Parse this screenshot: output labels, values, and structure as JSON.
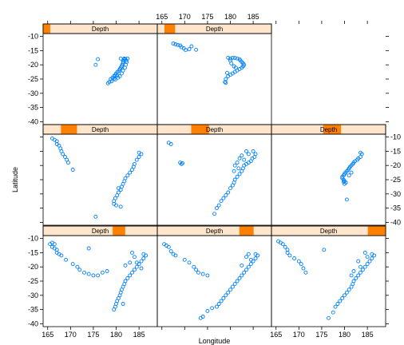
{
  "chart_data": {
    "type": "scatter",
    "layout": "trellis 3x3, conditioned on Depth (equal-count shingles)",
    "xlabel": "Longitude",
    "ylabel": "Latitude",
    "xlim": [
      164,
      189
    ],
    "ylim": [
      -41,
      -9
    ],
    "x_ticks": [
      165,
      170,
      175,
      180,
      185
    ],
    "y_ticks": [
      -10,
      -15,
      -20,
      -25,
      -30,
      -35,
      -40
    ],
    "strip_label": "Depth",
    "colors": {
      "points": "#0080ff",
      "strip_bg": "#ffe5cc",
      "strip_bar": "#ff7f00",
      "frame": "#000000"
    },
    "depth_range": [
      40,
      680
    ],
    "panels": [
      {
        "index": 1,
        "row": 1,
        "col": 1,
        "depth_interval": [
          40,
          80
        ],
        "points": [
          [
            178.5,
            -26
          ],
          [
            178.8,
            -25
          ],
          [
            179.2,
            -24.5
          ],
          [
            179.5,
            -24
          ],
          [
            179.8,
            -23.5
          ],
          [
            180,
            -23
          ],
          [
            180.3,
            -22.5
          ],
          [
            180.6,
            -22
          ],
          [
            180.8,
            -21.5
          ],
          [
            181,
            -21
          ],
          [
            181.2,
            -20.5
          ],
          [
            181.3,
            -20
          ],
          [
            181.5,
            -19.5
          ],
          [
            181.5,
            -19
          ],
          [
            181.6,
            -18.5
          ],
          [
            181.7,
            -18
          ],
          [
            181.8,
            -17.8
          ],
          [
            182,
            -18
          ],
          [
            182.2,
            -18.5
          ],
          [
            182.3,
            -19
          ],
          [
            182.1,
            -20
          ],
          [
            181.9,
            -21
          ],
          [
            181.5,
            -22
          ],
          [
            181.2,
            -23
          ],
          [
            180.8,
            -24
          ],
          [
            180.4,
            -24.5
          ],
          [
            179.8,
            -25.2
          ],
          [
            179,
            -25.8
          ],
          [
            178.2,
            -26.5
          ],
          [
            181,
            -17.8
          ],
          [
            182.5,
            -17.8
          ],
          [
            176,
            -18
          ],
          [
            175.5,
            -20
          ],
          [
            180.2,
            -23.8
          ],
          [
            179.6,
            -24.8
          ]
        ]
      },
      {
        "index": 2,
        "row": 1,
        "col": 2,
        "depth_interval": [
          80,
          140
        ],
        "points": [
          [
            167.5,
            -12.5
          ],
          [
            168,
            -12.8
          ],
          [
            168.5,
            -13
          ],
          [
            169,
            -13.2
          ],
          [
            169.3,
            -13.8
          ],
          [
            169.8,
            -14.2
          ],
          [
            170.2,
            -14.8
          ],
          [
            171,
            -14.5
          ],
          [
            172.5,
            -14.7
          ],
          [
            171.5,
            -13.5
          ],
          [
            179.5,
            -17.5
          ],
          [
            180,
            -17.8
          ],
          [
            180.5,
            -17.5
          ],
          [
            181,
            -17.6
          ],
          [
            181.5,
            -17.8
          ],
          [
            182,
            -18
          ],
          [
            182.2,
            -18.5
          ],
          [
            182.5,
            -19
          ],
          [
            182.8,
            -19.5
          ],
          [
            183,
            -20
          ],
          [
            182.8,
            -20.5
          ],
          [
            182.5,
            -21
          ],
          [
            182,
            -21.5
          ],
          [
            181.5,
            -22
          ],
          [
            181,
            -22.5
          ],
          [
            180.5,
            -23
          ],
          [
            180,
            -23.5
          ],
          [
            179.5,
            -24
          ],
          [
            179,
            -25
          ],
          [
            178.8,
            -26
          ],
          [
            179,
            -26.3
          ],
          [
            180,
            -18.5
          ],
          [
            180.2,
            -19.5
          ],
          [
            180.8,
            -20.5
          ],
          [
            181.2,
            -21
          ],
          [
            179.3,
            -22.8
          ]
        ]
      },
      {
        "index": 3,
        "row": 2,
        "col": 1,
        "depth_interval": [
          140,
          230
        ],
        "points": [
          [
            166,
            -10.5
          ],
          [
            166.5,
            -11
          ],
          [
            167,
            -11.5
          ],
          [
            167,
            -12.5
          ],
          [
            167.5,
            -13
          ],
          [
            167.8,
            -14
          ],
          [
            168,
            -15
          ],
          [
            168.3,
            -16
          ],
          [
            168.8,
            -17
          ],
          [
            169.2,
            -18
          ],
          [
            169.5,
            -19
          ],
          [
            170.5,
            -21.5
          ],
          [
            185,
            -15.5
          ],
          [
            185.5,
            -16
          ],
          [
            185,
            -17
          ],
          [
            184.5,
            -18
          ],
          [
            184,
            -19.5
          ],
          [
            183.8,
            -20.5
          ],
          [
            183.5,
            -21.5
          ],
          [
            183,
            -22.5
          ],
          [
            182.5,
            -23.5
          ],
          [
            182,
            -24.5
          ],
          [
            181.8,
            -25.5
          ],
          [
            181.5,
            -26.5
          ],
          [
            181.2,
            -27.5
          ],
          [
            181,
            -28.5
          ],
          [
            180.5,
            -29.5
          ],
          [
            180.2,
            -30.5
          ],
          [
            179.8,
            -31.5
          ],
          [
            179.5,
            -32.5
          ],
          [
            179.5,
            -33.5
          ],
          [
            180,
            -34
          ],
          [
            181,
            -34.5
          ],
          [
            175.5,
            -38
          ],
          [
            180.5,
            -28
          ]
        ]
      },
      {
        "index": 4,
        "row": 2,
        "col": 2,
        "depth_interval": [
          230,
          330
        ],
        "points": [
          [
            166.5,
            -12
          ],
          [
            167,
            -12.5
          ],
          [
            169,
            -19
          ],
          [
            169.3,
            -19.5
          ],
          [
            169.5,
            -19.2
          ],
          [
            185,
            -15
          ],
          [
            185.5,
            -16
          ],
          [
            185.3,
            -17
          ],
          [
            184.8,
            -17.5
          ],
          [
            184.5,
            -18.5
          ],
          [
            184,
            -19
          ],
          [
            183.5,
            -19.5
          ],
          [
            183,
            -20
          ],
          [
            182.8,
            -21
          ],
          [
            182.5,
            -22
          ],
          [
            182,
            -23
          ],
          [
            181.5,
            -24
          ],
          [
            181,
            -25
          ],
          [
            180.8,
            -26
          ],
          [
            180.5,
            -27
          ],
          [
            180,
            -28
          ],
          [
            179.5,
            -29.5
          ],
          [
            179,
            -30.5
          ],
          [
            178.5,
            -31.5
          ],
          [
            178,
            -32.5
          ],
          [
            177.5,
            -34
          ],
          [
            177,
            -35
          ],
          [
            176.5,
            -37
          ],
          [
            183.5,
            -15
          ],
          [
            184,
            -16
          ],
          [
            182.5,
            -16.5
          ],
          [
            182,
            -17.5
          ],
          [
            183,
            -18
          ],
          [
            181.5,
            -19
          ],
          [
            181,
            -20
          ],
          [
            180.8,
            -22
          ],
          [
            181.8,
            -21
          ]
        ]
      },
      {
        "index": 5,
        "row": 2,
        "col": 3,
        "depth_interval": [
          330,
          430
        ],
        "points": [
          [
            183.5,
            -15.5
          ],
          [
            183.8,
            -16
          ],
          [
            183.5,
            -17
          ],
          [
            183,
            -17.5
          ],
          [
            182.8,
            -18
          ],
          [
            182.3,
            -18.5
          ],
          [
            182,
            -19
          ],
          [
            181.8,
            -19.5
          ],
          [
            181.5,
            -20
          ],
          [
            181.2,
            -20.5
          ],
          [
            181,
            -21
          ],
          [
            180.8,
            -21.5
          ],
          [
            180.5,
            -22
          ],
          [
            180.2,
            -22.5
          ],
          [
            180,
            -23
          ],
          [
            179.8,
            -23.5
          ],
          [
            179.5,
            -24
          ],
          [
            179.5,
            -24.5
          ],
          [
            179.8,
            -25
          ],
          [
            180,
            -25.5
          ],
          [
            180.3,
            -26
          ],
          [
            180,
            -26.5
          ],
          [
            179.8,
            -25.8
          ],
          [
            181,
            -23.5
          ],
          [
            181.5,
            -22.5
          ],
          [
            180.5,
            -32
          ]
        ]
      },
      {
        "index": 6,
        "row": 3,
        "col": 1,
        "depth_interval": [
          430,
          500
        ],
        "points": [
          [
            165.5,
            -12
          ],
          [
            166,
            -11.5
          ],
          [
            166.5,
            -12
          ],
          [
            166,
            -13
          ],
          [
            166.5,
            -13.5
          ],
          [
            167,
            -14
          ],
          [
            167,
            -15
          ],
          [
            167.5,
            -15.5
          ],
          [
            168,
            -16
          ],
          [
            169,
            -17.5
          ],
          [
            170.5,
            -19
          ],
          [
            171.5,
            -20
          ],
          [
            172,
            -21
          ],
          [
            173,
            -22
          ],
          [
            174,
            -22.5
          ],
          [
            175,
            -23
          ],
          [
            176,
            -23
          ],
          [
            177,
            -22
          ],
          [
            178,
            -21.5
          ],
          [
            174,
            -13.5
          ],
          [
            186,
            -15.5
          ],
          [
            186.5,
            -16
          ],
          [
            186,
            -17
          ],
          [
            185.5,
            -18
          ],
          [
            185,
            -19
          ],
          [
            184.5,
            -20
          ],
          [
            184,
            -21
          ],
          [
            183.5,
            -22
          ],
          [
            183,
            -23
          ],
          [
            182.5,
            -24
          ],
          [
            182,
            -25
          ],
          [
            181.8,
            -26
          ],
          [
            181.5,
            -27
          ],
          [
            181.2,
            -28
          ],
          [
            181,
            -29
          ],
          [
            180.8,
            -30
          ],
          [
            180.5,
            -31
          ],
          [
            180.2,
            -32
          ],
          [
            180,
            -33
          ],
          [
            179.8,
            -34
          ],
          [
            179.5,
            -35
          ],
          [
            183.5,
            -15
          ],
          [
            184,
            -16.5
          ],
          [
            184.5,
            -18.5
          ],
          [
            185.5,
            -20.5
          ],
          [
            182,
            -19.5
          ],
          [
            183,
            -18.5
          ],
          [
            181.5,
            -33
          ]
        ]
      },
      {
        "index": 7,
        "row": 3,
        "col": 2,
        "depth_interval": [
          500,
          580
        ],
        "points": [
          [
            165.5,
            -12
          ],
          [
            166,
            -12.5
          ],
          [
            166.5,
            -13
          ],
          [
            167,
            -14.5
          ],
          [
            167.5,
            -15.5
          ],
          [
            168,
            -16
          ],
          [
            170,
            -17.5
          ],
          [
            171,
            -18.5
          ],
          [
            172,
            -20
          ],
          [
            172.5,
            -21
          ],
          [
            173,
            -22
          ],
          [
            174,
            -22.5
          ],
          [
            175,
            -23
          ],
          [
            185.5,
            -15.5
          ],
          [
            186,
            -16
          ],
          [
            185.5,
            -17
          ],
          [
            185,
            -18
          ],
          [
            184.5,
            -19
          ],
          [
            184,
            -20
          ],
          [
            183.5,
            -21
          ],
          [
            183,
            -22
          ],
          [
            182.5,
            -23
          ],
          [
            182,
            -24
          ],
          [
            181.5,
            -25
          ],
          [
            181,
            -26
          ],
          [
            180.5,
            -27
          ],
          [
            180,
            -28
          ],
          [
            179.5,
            -29
          ],
          [
            179,
            -30
          ],
          [
            178.5,
            -31
          ],
          [
            178,
            -32
          ],
          [
            177.5,
            -33
          ],
          [
            177,
            -34
          ],
          [
            176,
            -34.5
          ],
          [
            175,
            -35.5
          ],
          [
            174,
            -37.5
          ],
          [
            173.5,
            -38
          ],
          [
            184,
            -15.5
          ],
          [
            183.5,
            -16.5
          ],
          [
            184.5,
            -17.5
          ],
          [
            182.5,
            -19.5
          ]
        ]
      },
      {
        "index": 8,
        "row": 3,
        "col": 3,
        "depth_interval": [
          580,
          680
        ],
        "points": [
          [
            165.5,
            -11
          ],
          [
            166,
            -11.5
          ],
          [
            166.5,
            -12
          ],
          [
            167,
            -13
          ],
          [
            167.5,
            -14
          ],
          [
            167.5,
            -15
          ],
          [
            168,
            -16
          ],
          [
            169,
            -17
          ],
          [
            170,
            -18
          ],
          [
            170.5,
            -19
          ],
          [
            171,
            -20.5
          ],
          [
            171.5,
            -22
          ],
          [
            175.5,
            -14
          ],
          [
            186,
            -15.5
          ],
          [
            186.5,
            -16
          ],
          [
            186,
            -17
          ],
          [
            185.5,
            -18
          ],
          [
            185,
            -19
          ],
          [
            184.5,
            -20
          ],
          [
            184,
            -21
          ],
          [
            183.5,
            -22
          ],
          [
            183,
            -23
          ],
          [
            182.5,
            -24
          ],
          [
            182,
            -25
          ],
          [
            181.8,
            -26
          ],
          [
            181.5,
            -27
          ],
          [
            181,
            -28
          ],
          [
            180.5,
            -29
          ],
          [
            180,
            -30
          ],
          [
            179.5,
            -31
          ],
          [
            179,
            -32
          ],
          [
            178.5,
            -33
          ],
          [
            178,
            -34
          ],
          [
            177.5,
            -36
          ],
          [
            176.5,
            -38
          ],
          [
            184.5,
            -15
          ],
          [
            185,
            -16.5
          ],
          [
            183,
            -18
          ],
          [
            183.5,
            -20
          ],
          [
            182,
            -21.5
          ],
          [
            181.5,
            -23
          ]
        ]
      }
    ]
  }
}
